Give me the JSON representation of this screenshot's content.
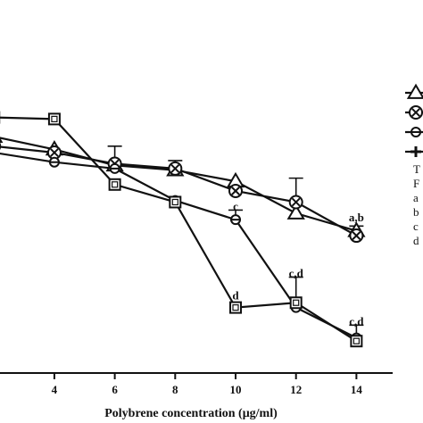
{
  "chart_data": {
    "type": "line",
    "title": "",
    "xlabel": "Polybrene concentration (μg/ml)",
    "ylabel": "",
    "x_ticks": [
      4,
      6,
      8,
      10,
      12,
      14
    ],
    "xlim": [
      2.2,
      15.2
    ],
    "ylim": [
      0,
      1
    ],
    "grid": false,
    "legend_placement": "right",
    "series": [
      {
        "marker": "triangle",
        "x": [
          2,
          4,
          6,
          8,
          10,
          12,
          14
        ],
        "y": [
          0.74,
          0.7,
          0.65,
          0.635,
          0.6,
          0.5,
          0.445
        ],
        "err": [
          0,
          0,
          0,
          0.03,
          0,
          0,
          0
        ]
      },
      {
        "marker": "circle-x",
        "x": [
          2,
          4,
          6,
          8,
          10,
          12,
          14
        ],
        "y": [
          0.71,
          0.69,
          0.655,
          0.64,
          0.57,
          0.535,
          0.43
        ],
        "err": [
          0,
          0,
          0.055,
          0,
          0,
          0.075,
          0.03
        ]
      },
      {
        "marker": "circle-dash",
        "x": [
          2,
          4,
          6,
          8,
          10,
          12,
          14
        ],
        "y": [
          0.69,
          0.66,
          0.64,
          0.54,
          0.48,
          0.205,
          0.11
        ],
        "err": [
          0,
          0,
          0,
          0,
          0.03,
          0,
          0
        ]
      },
      {
        "marker": "square",
        "x": [
          2,
          4,
          6,
          8,
          10,
          12,
          14
        ],
        "y": [
          0.8,
          0.795,
          0.59,
          0.535,
          0.205,
          0.22,
          0.1
        ],
        "err": [
          0,
          0,
          0,
          0,
          0,
          0.08,
          0.05
        ]
      }
    ],
    "annotations": [
      {
        "x": 14,
        "y_above": 0.475,
        "text": "a,b"
      },
      {
        "x": 10,
        "y_above": 0.51,
        "text": "c"
      },
      {
        "x": 12,
        "y_above": 0.3,
        "text": "c,d"
      },
      {
        "x": 14,
        "y_above": 0.15,
        "text": "c,d"
      },
      {
        "x": 10,
        "y_above": 0.23,
        "text": "d"
      }
    ],
    "legend_markers": [
      "triangle",
      "circle-x",
      "circle-dash",
      "plus"
    ],
    "legend_text_lines": [
      "T",
      "F",
      "a",
      "b",
      "c",
      "d"
    ]
  }
}
